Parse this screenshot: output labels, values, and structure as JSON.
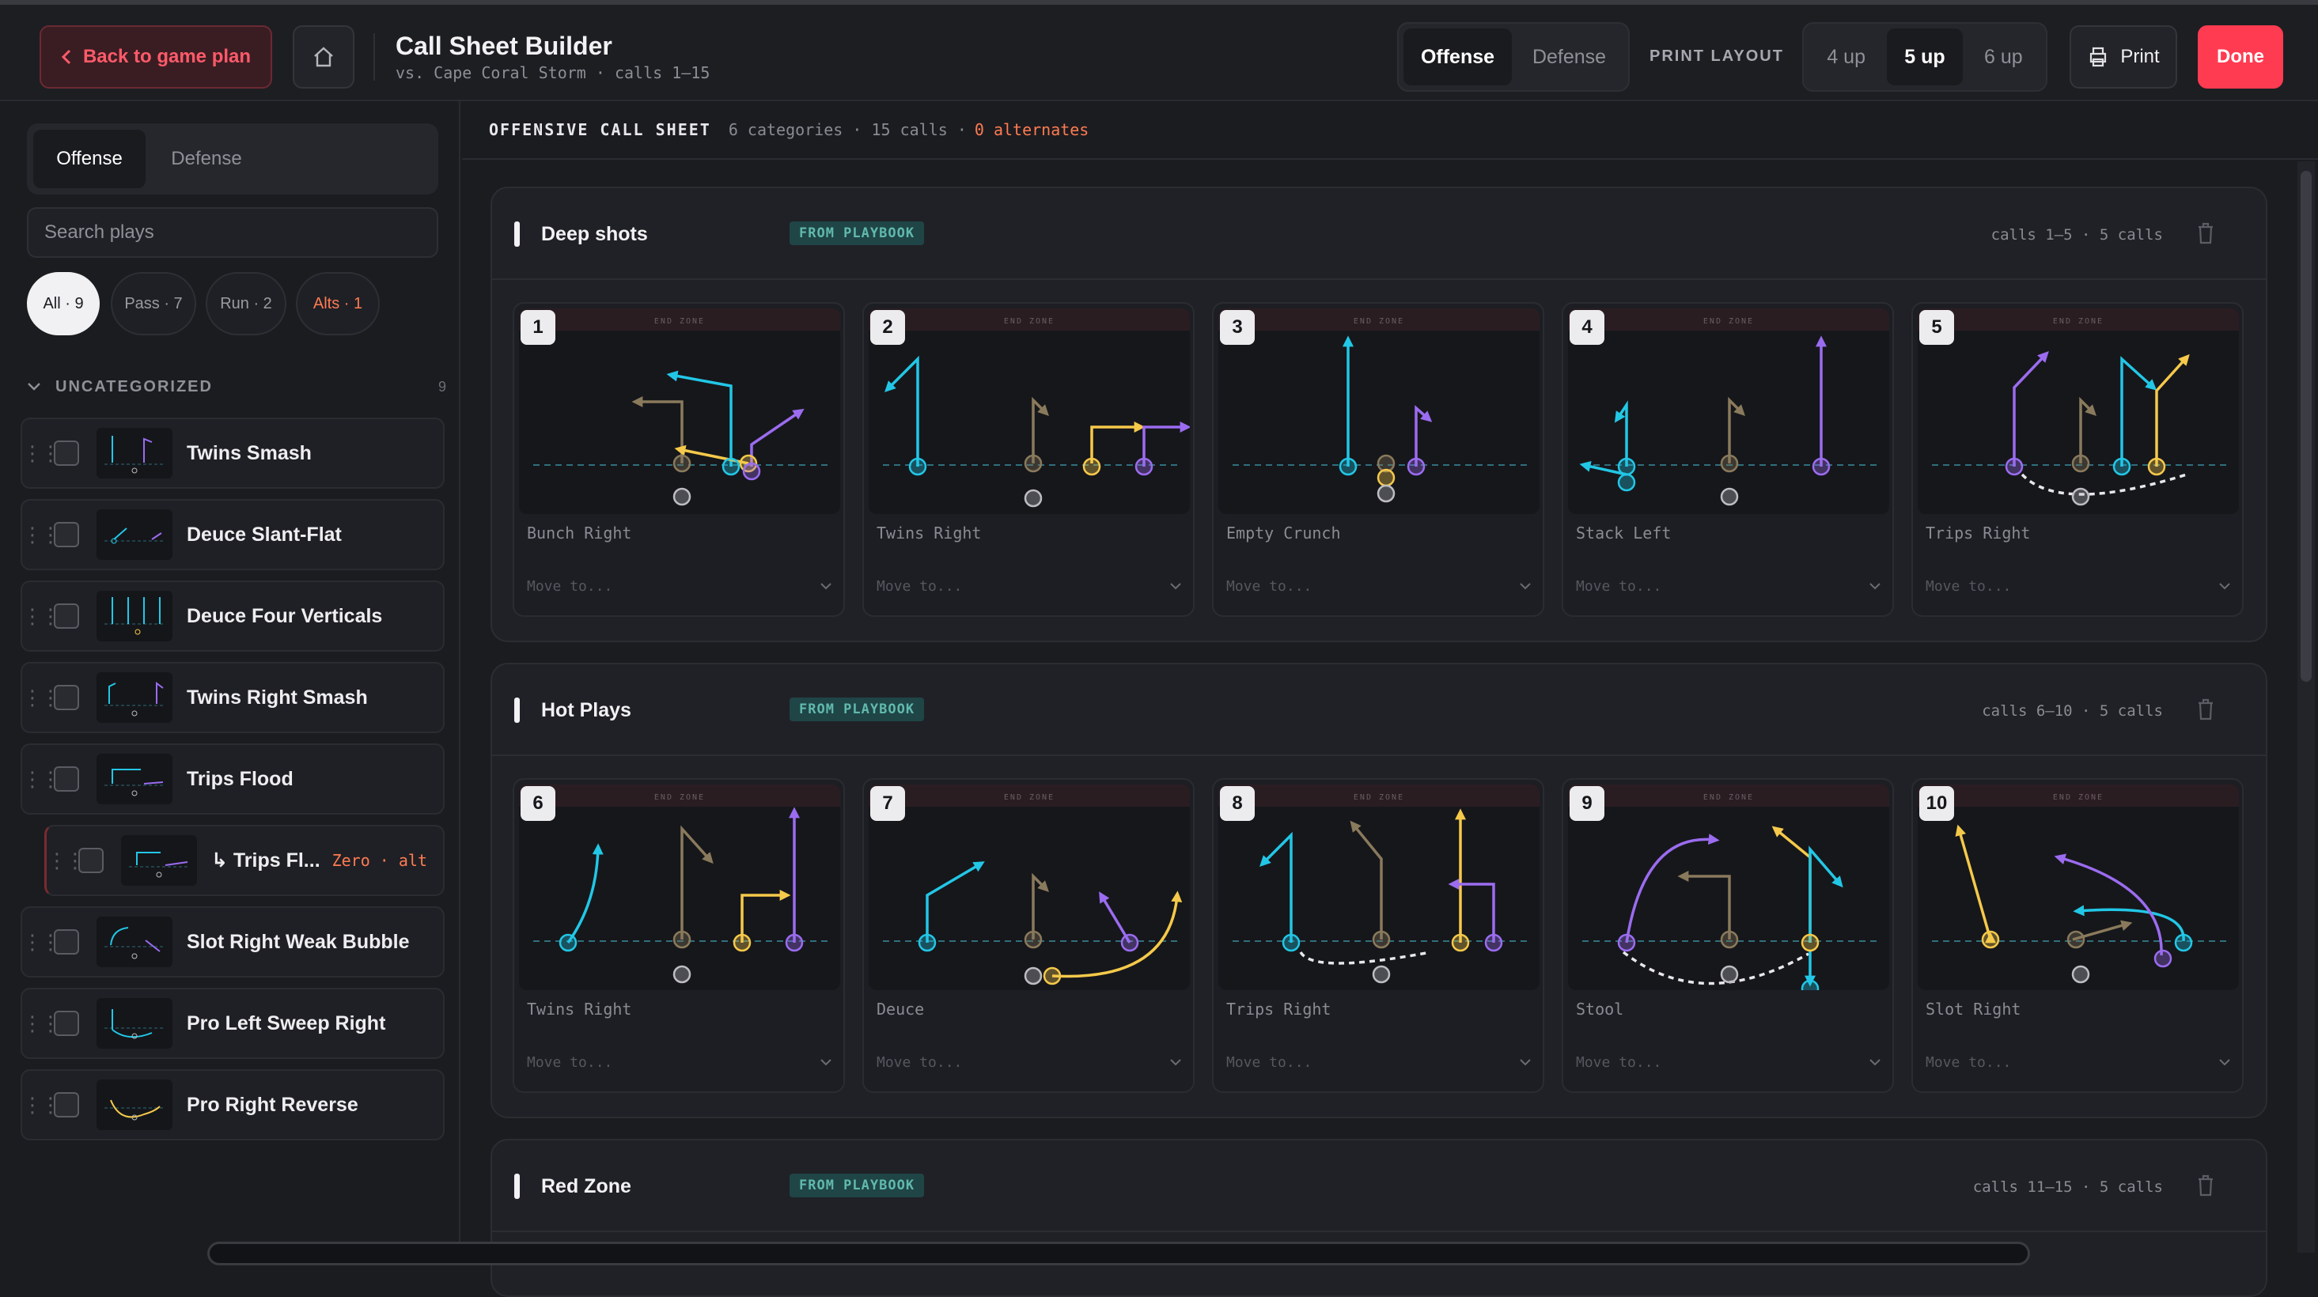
{
  "header": {
    "back_label": "Back to game plan",
    "title": "Call Sheet Builder",
    "subtitle": "vs. Cape Coral Storm · calls 1–15",
    "side_tabs": [
      "Offense",
      "Defense"
    ],
    "active_side": "Offense",
    "print_layout_label": "PRINT LAYOUT",
    "layouts": [
      "4 up",
      "5 up",
      "6 up"
    ],
    "active_layout": "5 up",
    "print_label": "Print",
    "done_label": "Done"
  },
  "sidebar": {
    "tabs": [
      "Offense",
      "Defense"
    ],
    "search_placeholder": "Search plays",
    "filters": [
      {
        "label": "All · 9",
        "active": true
      },
      {
        "label": "Pass · 7",
        "active": false
      },
      {
        "label": "Run · 2",
        "active": false
      },
      {
        "label": "Alts · 1",
        "active": false
      }
    ],
    "category": {
      "name": "UNCATEGORIZED",
      "count": "9"
    },
    "plays": [
      {
        "name": "Twins Smash"
      },
      {
        "name": "Deuce Slant-Flat"
      },
      {
        "name": "Deuce Four Verticals"
      },
      {
        "name": "Twins Right Smash"
      },
      {
        "name": "Trips Flood"
      },
      {
        "name": "↳ Trips Fl...",
        "alt": "Zero · alt"
      },
      {
        "name": "Slot Right Weak Bubble"
      },
      {
        "name": "Pro Left Sweep Right"
      },
      {
        "name": "Pro Right Reverse"
      }
    ]
  },
  "sheet": {
    "heading": "OFFENSIVE CALL SHEET",
    "meta": "6 categories · 15 calls ·",
    "alternates": "0 alternates",
    "end_zone_label": "END ZONE",
    "move_placeholder": "Move to...",
    "source_badge": "FROM PLAYBOOK",
    "categories": [
      {
        "name": "Deep shots",
        "range": "calls 1–5 · 5 calls",
        "calls": [
          {
            "num": "1",
            "formation": "Bunch Right"
          },
          {
            "num": "2",
            "formation": "Twins Right"
          },
          {
            "num": "3",
            "formation": "Empty Crunch"
          },
          {
            "num": "4",
            "formation": "Stack Left"
          },
          {
            "num": "5",
            "formation": "Trips Right"
          }
        ]
      },
      {
        "name": "Hot Plays",
        "range": "calls 6–10 · 5 calls",
        "calls": [
          {
            "num": "6",
            "formation": "Twins Right"
          },
          {
            "num": "7",
            "formation": "Deuce"
          },
          {
            "num": "8",
            "formation": "Trips Right"
          },
          {
            "num": "9",
            "formation": "Stool"
          },
          {
            "num": "10",
            "formation": "Slot Right"
          }
        ]
      },
      {
        "name": "Red Zone",
        "range": "calls 11–15 · 5 calls",
        "calls": []
      }
    ]
  },
  "colors": {
    "accent": "#ff3b52",
    "cyan": "#22c7e6",
    "yellow": "#f5c94a",
    "purple": "#9b6cf0",
    "tan": "#8a7a5c",
    "alt": "#ff7b52"
  }
}
